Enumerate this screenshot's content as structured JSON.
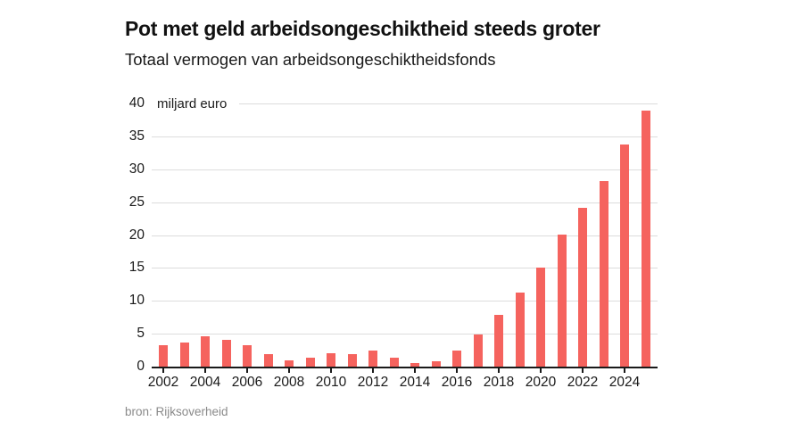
{
  "header": {
    "title": "Pot met geld arbeidsongeschiktheid steeds groter",
    "subtitle": "Totaal vermogen van arbeidsongeschiktheidsfonds"
  },
  "source": {
    "label": "bron: Rijksoverheid"
  },
  "colors": {
    "bar": "#f5635e",
    "grid": "#dcdcdc",
    "axis": "#1a1a1a",
    "text": "#1a1a1a",
    "source_text": "#8a8a8a"
  },
  "chart_data": {
    "type": "bar",
    "title": "Pot met geld arbeidsongeschiktheid steeds groter",
    "subtitle": "Totaal vermogen van arbeidsongeschiktheidsfonds",
    "unit_label": "miljard euro",
    "categories": [
      2002,
      2003,
      2004,
      2005,
      2006,
      2007,
      2008,
      2009,
      2010,
      2011,
      2012,
      2013,
      2014,
      2015,
      2016,
      2017,
      2018,
      2019,
      2020,
      2021,
      2022,
      2023,
      2024,
      2025
    ],
    "values": [
      3.3,
      3.6,
      4.6,
      4.0,
      3.2,
      1.9,
      1.0,
      1.4,
      2.1,
      1.9,
      2.5,
      1.4,
      0.6,
      0.8,
      2.4,
      4.9,
      7.8,
      11.3,
      15.1,
      20.1,
      24.1,
      28.2,
      33.7,
      38.9
    ],
    "xlabel": "",
    "ylabel": "miljard euro",
    "ylim": [
      0,
      40
    ],
    "yticks": [
      0,
      5,
      10,
      15,
      20,
      25,
      30,
      35,
      40
    ],
    "xtick_labels": [
      "2002",
      "2004",
      "2006",
      "2008",
      "2010",
      "2012",
      "2014",
      "2016",
      "2018",
      "2020",
      "2022",
      "2024"
    ],
    "grid": "horizontal",
    "legend": "none"
  }
}
